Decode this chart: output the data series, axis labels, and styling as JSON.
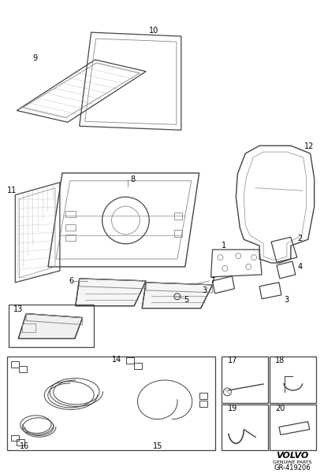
{
  "bg_color": "#ffffff",
  "line_color": "#444444",
  "label_color": "#000000",
  "fig_width": 4.11,
  "fig_height": 6.01,
  "dpi": 100,
  "volvo_text": "VOLVO",
  "genuine_parts": "GENUINE PARTS",
  "part_number": "GR-419206",
  "hatch_color": "#aaaaaa",
  "light_line": "#888888"
}
